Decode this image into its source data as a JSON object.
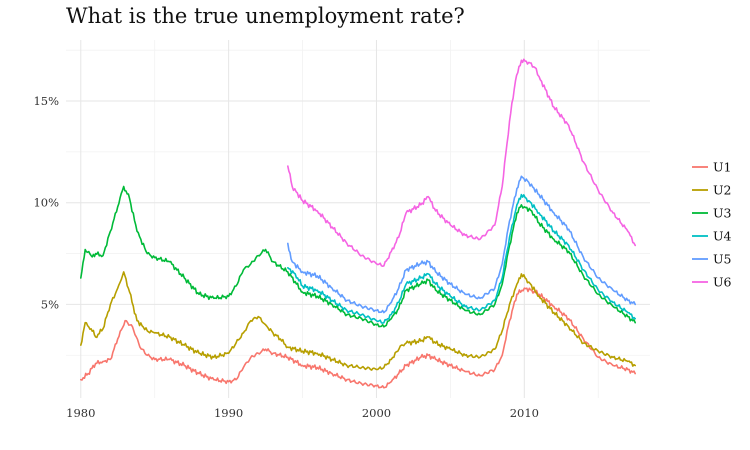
{
  "chart_data": {
    "type": "line",
    "title": "What is the true unemployment rate?",
    "xlabel": "",
    "ylabel": "",
    "xlim": [
      1979.0,
      2018.5
    ],
    "ylim": [
      0.4,
      18.0
    ],
    "x_ticks": [
      1980,
      1990,
      2000,
      2010
    ],
    "x_tick_labels": [
      "1980",
      "1990",
      "2000",
      "2010"
    ],
    "x_minor": [
      1985,
      1995,
      2005,
      2015
    ],
    "y_ticks": [
      5,
      10,
      15
    ],
    "y_tick_labels": [
      "5%",
      "10%",
      "15%"
    ],
    "y_minor": [
      2.5,
      7.5,
      12.5,
      17.5
    ],
    "grid": true,
    "legend_position": "right",
    "series": [
      {
        "name": "U1",
        "color": "#F8766D",
        "points": [
          [
            1980.0,
            1.3
          ],
          [
            1980.5,
            1.6
          ],
          [
            1981.0,
            2.1
          ],
          [
            1981.5,
            2.2
          ],
          [
            1982.0,
            2.3
          ],
          [
            1982.5,
            3.3
          ],
          [
            1983.0,
            4.2
          ],
          [
            1983.5,
            3.9
          ],
          [
            1984.0,
            2.9
          ],
          [
            1984.5,
            2.5
          ],
          [
            1985.0,
            2.3
          ],
          [
            1986.0,
            2.3
          ],
          [
            1987.0,
            2.0
          ],
          [
            1988.0,
            1.6
          ],
          [
            1989.0,
            1.3
          ],
          [
            1990.0,
            1.2
          ],
          [
            1990.5,
            1.3
          ],
          [
            1991.0,
            1.9
          ],
          [
            1991.5,
            2.4
          ],
          [
            1992.0,
            2.6
          ],
          [
            1992.5,
            2.8
          ],
          [
            1993.0,
            2.6
          ],
          [
            1994.0,
            2.4
          ],
          [
            1995.0,
            2.0
          ],
          [
            1996.0,
            1.9
          ],
          [
            1997.0,
            1.6
          ],
          [
            1998.0,
            1.3
          ],
          [
            1999.0,
            1.1
          ],
          [
            2000.0,
            1.0
          ],
          [
            2000.5,
            0.9
          ],
          [
            2001.0,
            1.2
          ],
          [
            2001.5,
            1.6
          ],
          [
            2002.0,
            2.0
          ],
          [
            2003.0,
            2.4
          ],
          [
            2003.5,
            2.5
          ],
          [
            2004.0,
            2.3
          ],
          [
            2005.0,
            2.0
          ],
          [
            2006.0,
            1.7
          ],
          [
            2007.0,
            1.5
          ],
          [
            2008.0,
            1.8
          ],
          [
            2008.5,
            2.5
          ],
          [
            2009.0,
            4.2
          ],
          [
            2009.5,
            5.5
          ],
          [
            2010.0,
            5.8
          ],
          [
            2010.5,
            5.7
          ],
          [
            2011.0,
            5.5
          ],
          [
            2012.0,
            4.9
          ],
          [
            2013.0,
            4.3
          ],
          [
            2014.0,
            3.3
          ],
          [
            2015.0,
            2.4
          ],
          [
            2016.0,
            2.0
          ],
          [
            2017.0,
            1.8
          ],
          [
            2017.5,
            1.6
          ]
        ]
      },
      {
        "name": "U2",
        "color": "#B79F00",
        "points": [
          [
            1980.0,
            3.0
          ],
          [
            1980.3,
            4.1
          ],
          [
            1980.7,
            3.8
          ],
          [
            1981.0,
            3.4
          ],
          [
            1981.5,
            3.8
          ],
          [
            1982.0,
            5.0
          ],
          [
            1982.5,
            5.8
          ],
          [
            1982.9,
            6.6
          ],
          [
            1983.3,
            5.6
          ],
          [
            1983.8,
            4.2
          ],
          [
            1984.5,
            3.7
          ],
          [
            1985.0,
            3.6
          ],
          [
            1986.0,
            3.4
          ],
          [
            1987.0,
            3.0
          ],
          [
            1988.0,
            2.6
          ],
          [
            1989.0,
            2.4
          ],
          [
            1990.0,
            2.6
          ],
          [
            1990.5,
            3.1
          ],
          [
            1991.0,
            3.6
          ],
          [
            1991.5,
            4.2
          ],
          [
            1992.0,
            4.4
          ],
          [
            1992.5,
            4.0
          ],
          [
            1993.0,
            3.6
          ],
          [
            1993.5,
            3.3
          ],
          [
            1994.0,
            2.9
          ],
          [
            1995.0,
            2.7
          ],
          [
            1996.0,
            2.6
          ],
          [
            1997.0,
            2.3
          ],
          [
            1998.0,
            2.0
          ],
          [
            1999.0,
            1.9
          ],
          [
            2000.0,
            1.8
          ],
          [
            2000.5,
            1.9
          ],
          [
            2001.0,
            2.3
          ],
          [
            2001.7,
            3.0
          ],
          [
            2002.0,
            3.1
          ],
          [
            2003.0,
            3.2
          ],
          [
            2003.5,
            3.4
          ],
          [
            2004.0,
            3.1
          ],
          [
            2005.0,
            2.8
          ],
          [
            2006.0,
            2.5
          ],
          [
            2007.0,
            2.4
          ],
          [
            2008.0,
            2.8
          ],
          [
            2008.5,
            3.7
          ],
          [
            2009.0,
            5.0
          ],
          [
            2009.5,
            6.0
          ],
          [
            2009.8,
            6.5
          ],
          [
            2010.3,
            6.1
          ],
          [
            2011.0,
            5.4
          ],
          [
            2012.0,
            4.6
          ],
          [
            2013.0,
            3.9
          ],
          [
            2014.0,
            3.1
          ],
          [
            2015.0,
            2.7
          ],
          [
            2016.0,
            2.4
          ],
          [
            2017.0,
            2.2
          ],
          [
            2017.5,
            2.0
          ]
        ]
      },
      {
        "name": "U3",
        "color": "#00BA38",
        "points": [
          [
            1980.0,
            6.3
          ],
          [
            1980.3,
            7.7
          ],
          [
            1980.7,
            7.4
          ],
          [
            1981.0,
            7.5
          ],
          [
            1981.5,
            7.4
          ],
          [
            1982.0,
            8.6
          ],
          [
            1982.5,
            9.8
          ],
          [
            1982.9,
            10.8
          ],
          [
            1983.3,
            10.2
          ],
          [
            1983.8,
            8.6
          ],
          [
            1984.5,
            7.5
          ],
          [
            1985.0,
            7.3
          ],
          [
            1986.0,
            7.1
          ],
          [
            1987.0,
            6.3
          ],
          [
            1988.0,
            5.5
          ],
          [
            1989.0,
            5.3
          ],
          [
            1990.0,
            5.4
          ],
          [
            1990.5,
            5.9
          ],
          [
            1991.0,
            6.7
          ],
          [
            1991.5,
            7.0
          ],
          [
            1992.0,
            7.4
          ],
          [
            1992.5,
            7.7
          ],
          [
            1993.0,
            7.1
          ],
          [
            1994.0,
            6.6
          ],
          [
            1995.0,
            5.6
          ],
          [
            1996.0,
            5.4
          ],
          [
            1997.0,
            5.0
          ],
          [
            1998.0,
            4.5
          ],
          [
            1999.0,
            4.3
          ],
          [
            2000.0,
            4.0
          ],
          [
            2000.5,
            3.9
          ],
          [
            2001.0,
            4.3
          ],
          [
            2001.5,
            4.8
          ],
          [
            2002.0,
            5.7
          ],
          [
            2003.0,
            6.0
          ],
          [
            2003.5,
            6.2
          ],
          [
            2004.0,
            5.7
          ],
          [
            2005.0,
            5.2
          ],
          [
            2006.0,
            4.7
          ],
          [
            2007.0,
            4.5
          ],
          [
            2008.0,
            5.0
          ],
          [
            2008.5,
            6.0
          ],
          [
            2009.0,
            7.9
          ],
          [
            2009.5,
            9.5
          ],
          [
            2009.8,
            9.9
          ],
          [
            2010.0,
            9.8
          ],
          [
            2010.5,
            9.6
          ],
          [
            2011.0,
            9.0
          ],
          [
            2012.0,
            8.2
          ],
          [
            2013.0,
            7.6
          ],
          [
            2014.0,
            6.4
          ],
          [
            2015.0,
            5.5
          ],
          [
            2016.0,
            4.9
          ],
          [
            2017.0,
            4.4
          ],
          [
            2017.5,
            4.1
          ]
        ]
      },
      {
        "name": "U4",
        "color": "#00BFC4",
        "points": [
          [
            1994.0,
            6.8
          ],
          [
            1994.5,
            6.5
          ],
          [
            1995.0,
            5.9
          ],
          [
            1996.0,
            5.7
          ],
          [
            1997.0,
            5.2
          ],
          [
            1998.0,
            4.7
          ],
          [
            1999.0,
            4.5
          ],
          [
            2000.0,
            4.2
          ],
          [
            2000.5,
            4.1
          ],
          [
            2001.0,
            4.5
          ],
          [
            2001.5,
            5.1
          ],
          [
            2002.0,
            6.0
          ],
          [
            2003.0,
            6.3
          ],
          [
            2003.5,
            6.5
          ],
          [
            2004.0,
            6.0
          ],
          [
            2005.0,
            5.4
          ],
          [
            2006.0,
            4.9
          ],
          [
            2007.0,
            4.7
          ],
          [
            2008.0,
            5.2
          ],
          [
            2008.5,
            6.3
          ],
          [
            2009.0,
            8.3
          ],
          [
            2009.5,
            9.9
          ],
          [
            2009.8,
            10.4
          ],
          [
            2010.3,
            10.1
          ],
          [
            2011.0,
            9.5
          ],
          [
            2012.0,
            8.6
          ],
          [
            2013.0,
            7.9
          ],
          [
            2014.0,
            6.7
          ],
          [
            2015.0,
            5.7
          ],
          [
            2016.0,
            5.1
          ],
          [
            2017.0,
            4.6
          ],
          [
            2017.5,
            4.3
          ]
        ]
      },
      {
        "name": "U5",
        "color": "#619CFF",
        "points": [
          [
            1994.0,
            8.0
          ],
          [
            1994.3,
            7.1
          ],
          [
            1995.0,
            6.6
          ],
          [
            1996.0,
            6.4
          ],
          [
            1997.0,
            5.8
          ],
          [
            1998.0,
            5.2
          ],
          [
            1999.0,
            4.9
          ],
          [
            2000.0,
            4.7
          ],
          [
            2000.5,
            4.6
          ],
          [
            2001.0,
            5.1
          ],
          [
            2001.5,
            5.8
          ],
          [
            2002.0,
            6.7
          ],
          [
            2003.0,
            7.0
          ],
          [
            2003.5,
            7.1
          ],
          [
            2004.0,
            6.6
          ],
          [
            2005.0,
            6.0
          ],
          [
            2006.0,
            5.5
          ],
          [
            2007.0,
            5.3
          ],
          [
            2008.0,
            5.8
          ],
          [
            2008.5,
            7.0
          ],
          [
            2009.0,
            9.1
          ],
          [
            2009.5,
            10.7
          ],
          [
            2009.8,
            11.3
          ],
          [
            2010.3,
            11.0
          ],
          [
            2011.0,
            10.4
          ],
          [
            2012.0,
            9.5
          ],
          [
            2013.0,
            8.7
          ],
          [
            2014.0,
            7.3
          ],
          [
            2015.0,
            6.3
          ],
          [
            2016.0,
            5.7
          ],
          [
            2017.0,
            5.2
          ],
          [
            2017.5,
            5.0
          ]
        ]
      },
      {
        "name": "U6",
        "color": "#F564E3",
        "points": [
          [
            1994.0,
            11.8
          ],
          [
            1994.3,
            10.8
          ],
          [
            1995.0,
            10.1
          ],
          [
            1996.0,
            9.6
          ],
          [
            1997.0,
            8.8
          ],
          [
            1998.0,
            8.0
          ],
          [
            1999.0,
            7.4
          ],
          [
            2000.0,
            7.0
          ],
          [
            2000.5,
            6.9
          ],
          [
            2001.0,
            7.6
          ],
          [
            2001.5,
            8.3
          ],
          [
            2002.0,
            9.5
          ],
          [
            2003.0,
            9.9
          ],
          [
            2003.5,
            10.3
          ],
          [
            2004.0,
            9.6
          ],
          [
            2005.0,
            8.9
          ],
          [
            2006.0,
            8.4
          ],
          [
            2007.0,
            8.2
          ],
          [
            2008.0,
            8.9
          ],
          [
            2008.5,
            10.8
          ],
          [
            2009.0,
            14.0
          ],
          [
            2009.4,
            16.0
          ],
          [
            2009.8,
            17.0
          ],
          [
            2010.3,
            16.9
          ],
          [
            2010.8,
            16.6
          ],
          [
            2011.0,
            16.2
          ],
          [
            2012.0,
            14.7
          ],
          [
            2013.0,
            13.8
          ],
          [
            2014.0,
            12.0
          ],
          [
            2015.0,
            10.6
          ],
          [
            2016.0,
            9.5
          ],
          [
            2017.0,
            8.6
          ],
          [
            2017.5,
            7.9
          ]
        ]
      }
    ]
  }
}
